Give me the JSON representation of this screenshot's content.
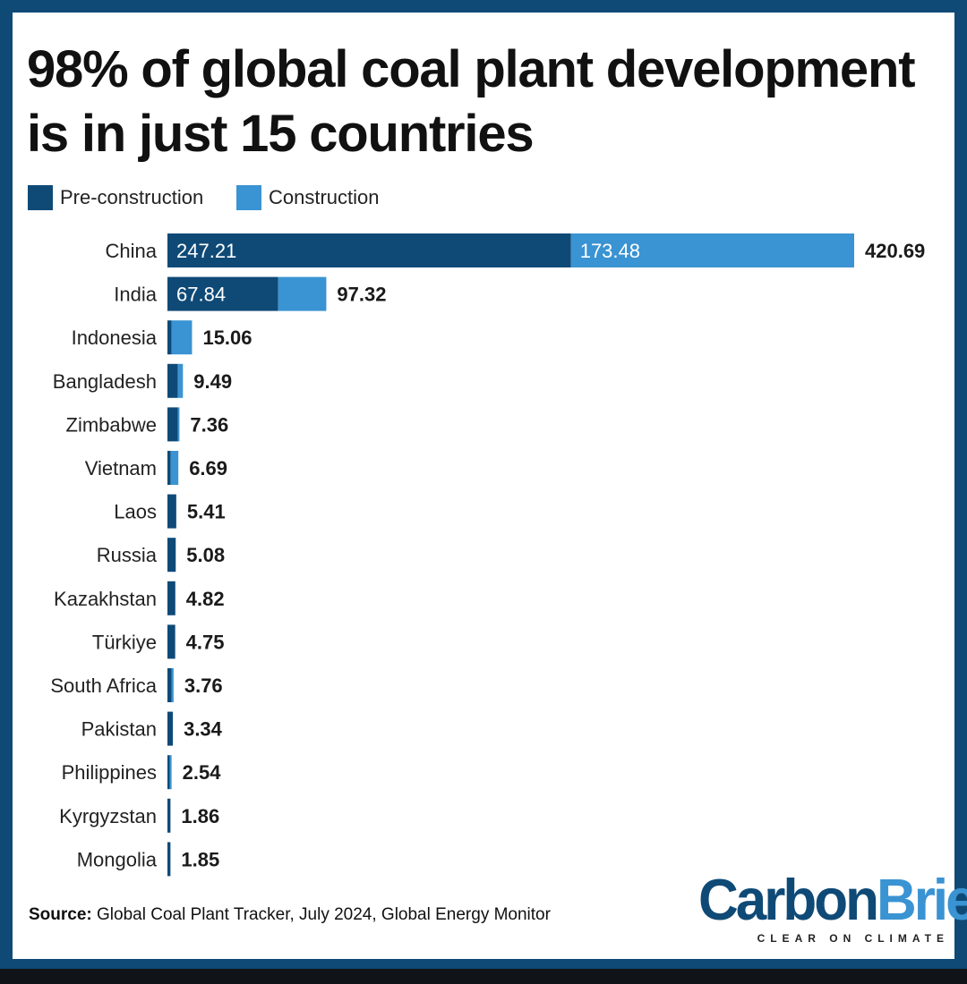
{
  "colors": {
    "pre_construction": "#0f4a77",
    "construction": "#3a93d2",
    "frame": "#0f4a77"
  },
  "title": "98% of global coal plant development is in just 15 countries",
  "legend": {
    "pre_construction": "Pre-construction",
    "construction": "Construction"
  },
  "source": {
    "label": "Source:",
    "text": "Global Coal Plant Tracker, July 2024, Global Energy Monitor"
  },
  "logo": {
    "carbon": "Carbon",
    "brief": "Brief",
    "tagline": "CLEAR ON CLIMATE"
  },
  "chart_data": {
    "type": "bar",
    "orientation": "horizontal",
    "stacked": true,
    "title": "98% of global coal plant development is in just 15 countries",
    "categories": [
      "China",
      "India",
      "Indonesia",
      "Bangladesh",
      "Zimbabwe",
      "Vietnam",
      "Laos",
      "Russia",
      "Kazakhstan",
      "Türkiye",
      "South Africa",
      "Pakistan",
      "Philippines",
      "Kyrgyzstan",
      "Mongolia"
    ],
    "series": [
      {
        "name": "Pre-construction",
        "values": [
          247.21,
          67.84,
          2.6,
          6.4,
          6.3,
          2.0,
          5.41,
          5.08,
          4.82,
          4.75,
          2.6,
          3.34,
          1.4,
          1.86,
          1.85
        ]
      },
      {
        "name": "Construction",
        "values": [
          173.48,
          29.48,
          12.46,
          3.09,
          1.06,
          4.69,
          0,
          0,
          0,
          0,
          1.16,
          0,
          1.14,
          0,
          0
        ]
      }
    ],
    "segment_labels": {
      "China": [
        "247.21",
        "173.48"
      ],
      "India": [
        "67.84",
        ""
      ]
    },
    "totals": [
      "420.69",
      "97.32",
      "15.06",
      "9.49",
      "7.36",
      "6.69",
      "5.41",
      "5.08",
      "4.82",
      "4.75",
      "3.76",
      "3.34",
      "2.54",
      "1.86",
      "1.85"
    ],
    "xlim": [
      0,
      420.69
    ],
    "grid": false,
    "legend_position": "top-left"
  }
}
